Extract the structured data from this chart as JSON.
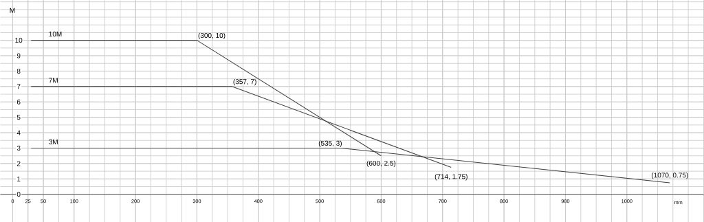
{
  "chart_data": {
    "type": "line",
    "xlabel": "mm",
    "ylabel": "M",
    "xlim": [
      -20,
      1125
    ],
    "ylim": [
      -1.8,
      12.6
    ],
    "xticks": [
      0,
      25,
      50,
      100,
      200,
      300,
      400,
      500,
      600,
      700,
      800,
      900,
      1000
    ],
    "yticks": [
      0,
      1,
      2,
      3,
      4,
      5,
      6,
      7,
      8,
      9,
      10
    ],
    "grid": true,
    "marker": "none",
    "line_style": "solid",
    "series": [
      {
        "name": "10M",
        "color": "#404040",
        "x": [
          30,
          300,
          600
        ],
        "values": [
          10,
          10,
          2.5
        ]
      },
      {
        "name": "7M",
        "color": "#404040",
        "x": [
          30,
          357,
          714
        ],
        "values": [
          7,
          7,
          1.75
        ]
      },
      {
        "name": "3M",
        "color": "#404040",
        "x": [
          30,
          535,
          1070
        ],
        "values": [
          3,
          3,
          0.75
        ]
      }
    ],
    "annotations": [
      {
        "text": "(300, 10)",
        "x": 300,
        "y": 10
      },
      {
        "text": "(357, 7)",
        "x": 357,
        "y": 7
      },
      {
        "text": "(535, 3)",
        "x": 535,
        "y": 3
      },
      {
        "text": "(600, 2.5)",
        "x": 600,
        "y": 2.5
      },
      {
        "text": "(714, 1.75)",
        "x": 714,
        "y": 1.75
      },
      {
        "text": "(1070, 0.75)",
        "x": 1070,
        "y": 0.75
      }
    ]
  }
}
